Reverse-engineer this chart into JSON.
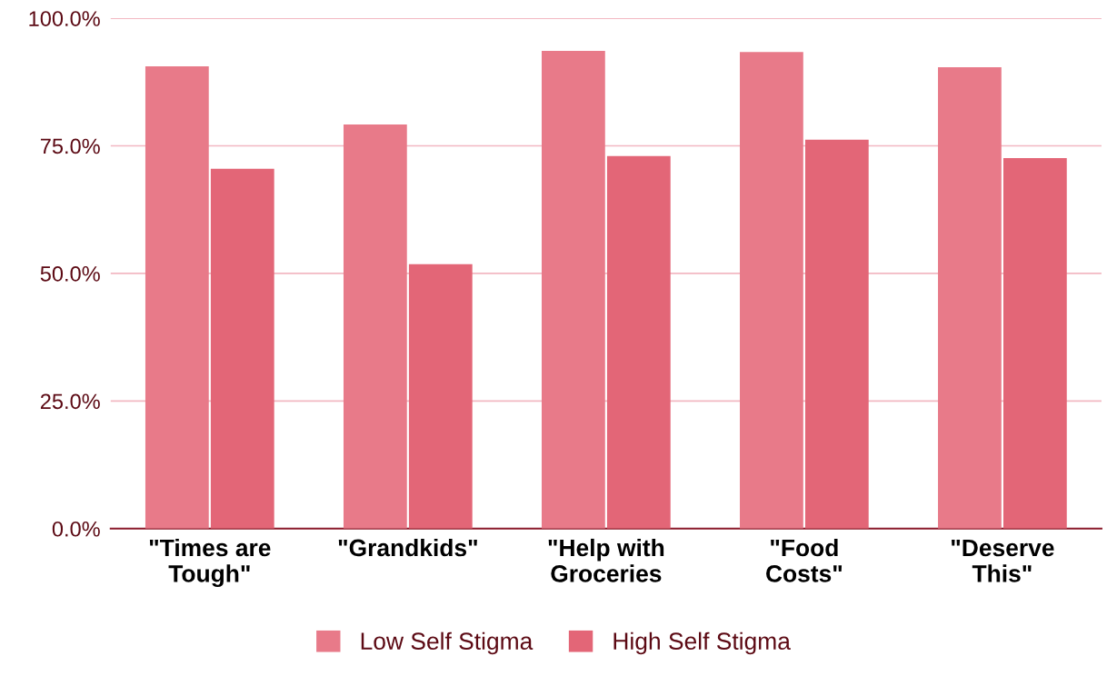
{
  "chart_data": {
    "type": "bar",
    "categories": [
      "\"Times are\nTough\"",
      "\"Grandkids\"",
      "\"Help with\nGroceries",
      "\"Food\nCosts\"",
      "\"Deserve\nThis\""
    ],
    "series": [
      {
        "name": "Low Self Stigma",
        "color": "#e87a89",
        "values": [
          90.6,
          79.2,
          93.6,
          93.4,
          90.4
        ]
      },
      {
        "name": "High Self Stigma",
        "color": "#e36677",
        "values": [
          70.5,
          51.8,
          73.0,
          76.2,
          72.6
        ]
      }
    ],
    "ylim": [
      0,
      100
    ],
    "yticks": [
      {
        "value": 0,
        "label": "0.0%"
      },
      {
        "value": 25,
        "label": "25.0%"
      },
      {
        "value": 50,
        "label": "50.0%"
      },
      {
        "value": 75,
        "label": "75.0%"
      },
      {
        "value": 100,
        "label": "100.0%"
      }
    ],
    "grid": "y",
    "legend": "bottom"
  }
}
